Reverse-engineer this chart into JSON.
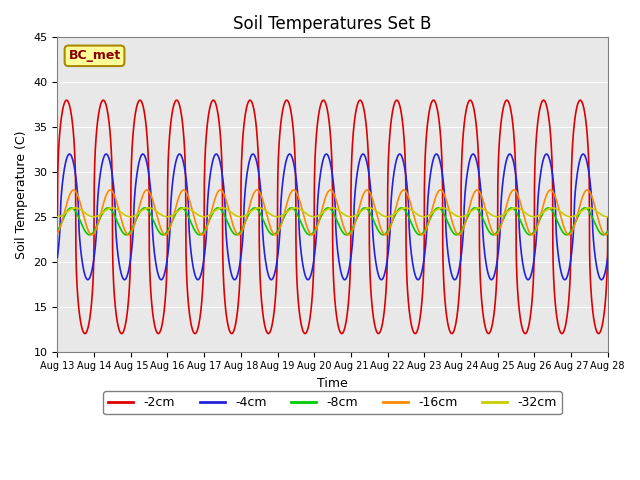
{
  "title": "Soil Temperatures Set B",
  "xlabel": "Time",
  "ylabel": "Soil Temperature (C)",
  "ylim": [
    10,
    45
  ],
  "background_color": "#e8e8e8",
  "annotation_text": "BC_met",
  "annotation_bg": "#ffff99",
  "annotation_border": "#aa8800",
  "legend_entries": [
    "-2cm",
    "-4cm",
    "-8cm",
    "-16cm",
    "-32cm"
  ],
  "legend_colors": [
    "#dd0000",
    "#2222dd",
    "#00cc00",
    "#ff8800",
    "#cccc00"
  ],
  "tick_labels": [
    "Aug 13",
    "Aug 14",
    "Aug 15",
    "Aug 16",
    "Aug 17",
    "Aug 18",
    "Aug 19",
    "Aug 20",
    "Aug 21",
    "Aug 22",
    "Aug 23",
    "Aug 24",
    "Aug 25",
    "Aug 26",
    "Aug 27",
    "Aug 28"
  ],
  "depths_mean": [
    25.0,
    25.0,
    24.5,
    25.5,
    25.5
  ],
  "depths_amp": [
    13.0,
    7.0,
    1.5,
    2.5,
    0.5
  ],
  "depths_phase": [
    0.0,
    0.5,
    0.8,
    1.2,
    1.5
  ],
  "period_hours": 24,
  "n_points": 3600
}
